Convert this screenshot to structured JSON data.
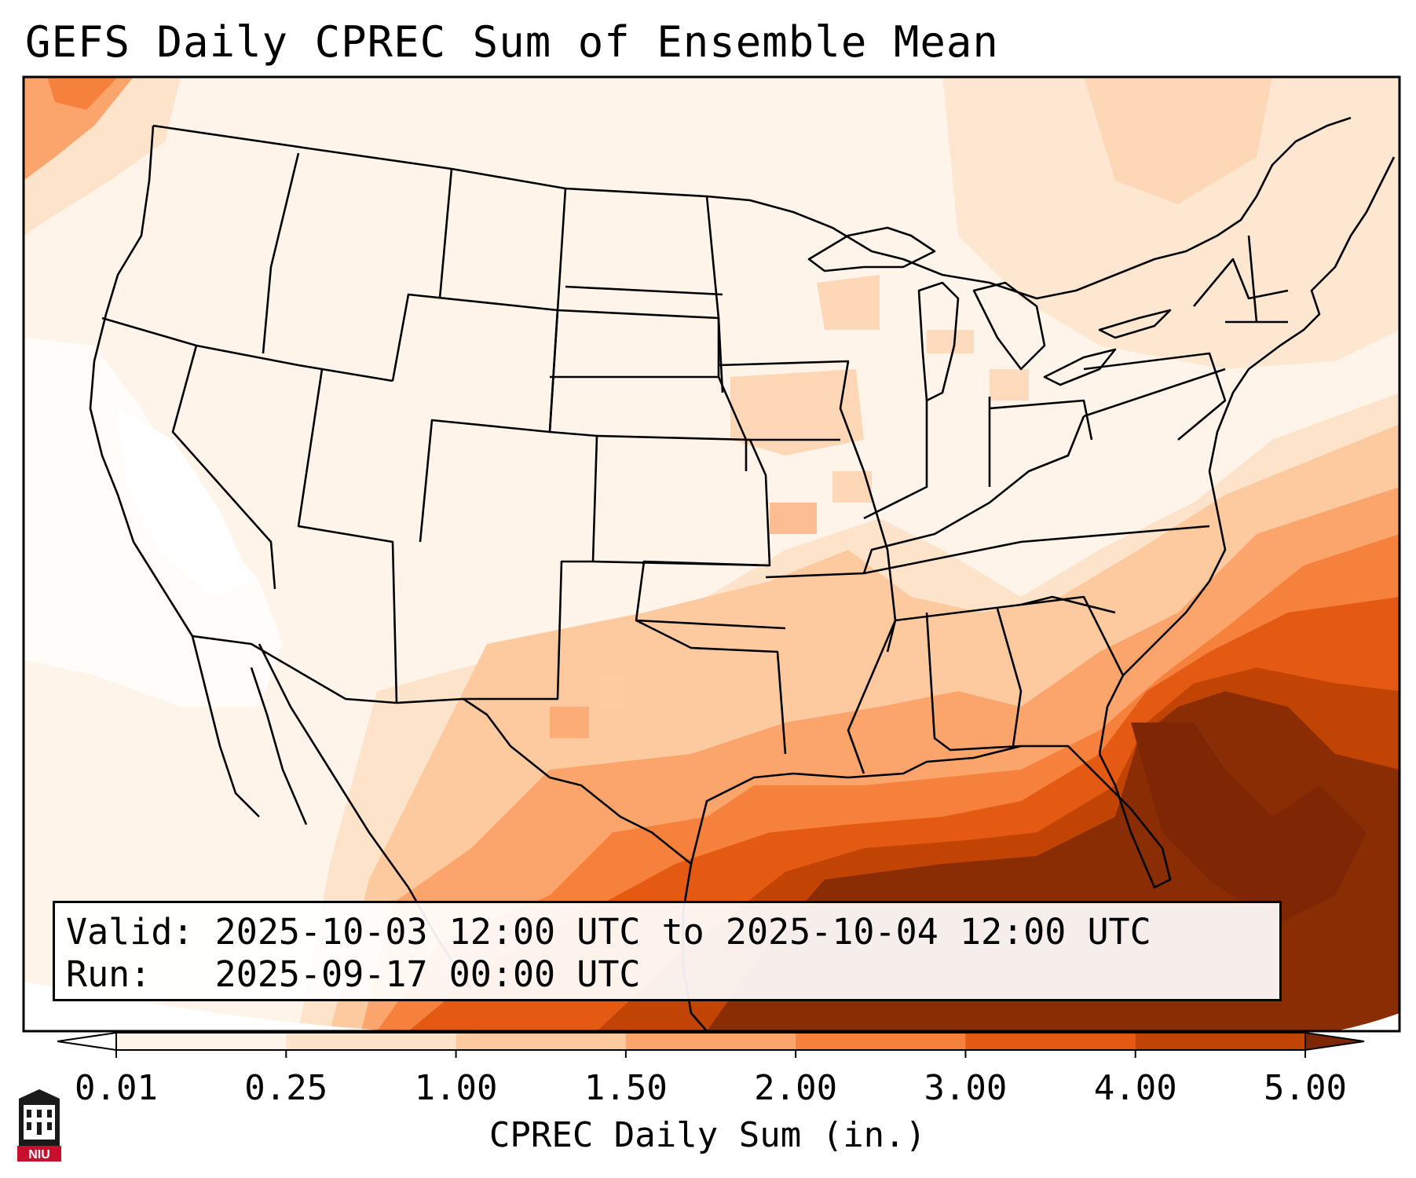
{
  "title": "GEFS Daily CPREC Sum of Ensemble Mean",
  "info": {
    "valid_label": "Valid:",
    "valid_value": "2025-10-03 12:00 UTC to 2025-10-04 12:00 UTC",
    "run_label": "Run:",
    "run_value": "2025-09-17 00:00 UTC"
  },
  "colorbar": {
    "label": "CPREC Daily Sum (in.)",
    "ticks": [
      "0.01",
      "0.25",
      "1.00",
      "1.50",
      "2.00",
      "3.00",
      "4.00",
      "5.00"
    ],
    "tick_values": [
      0.01,
      0.25,
      1.0,
      1.5,
      2.0,
      3.0,
      4.0,
      5.0
    ],
    "colors": [
      "#fff4e9",
      "#fde3ca",
      "#fdcaa0",
      "#fba56d",
      "#f6813d",
      "#e55a12",
      "#c14404",
      "#8a2c04"
    ],
    "under_color": "#ffffff",
    "over_color": "#7f2704"
  },
  "logo": {
    "text": "NIU",
    "color": "#c8102e"
  }
}
